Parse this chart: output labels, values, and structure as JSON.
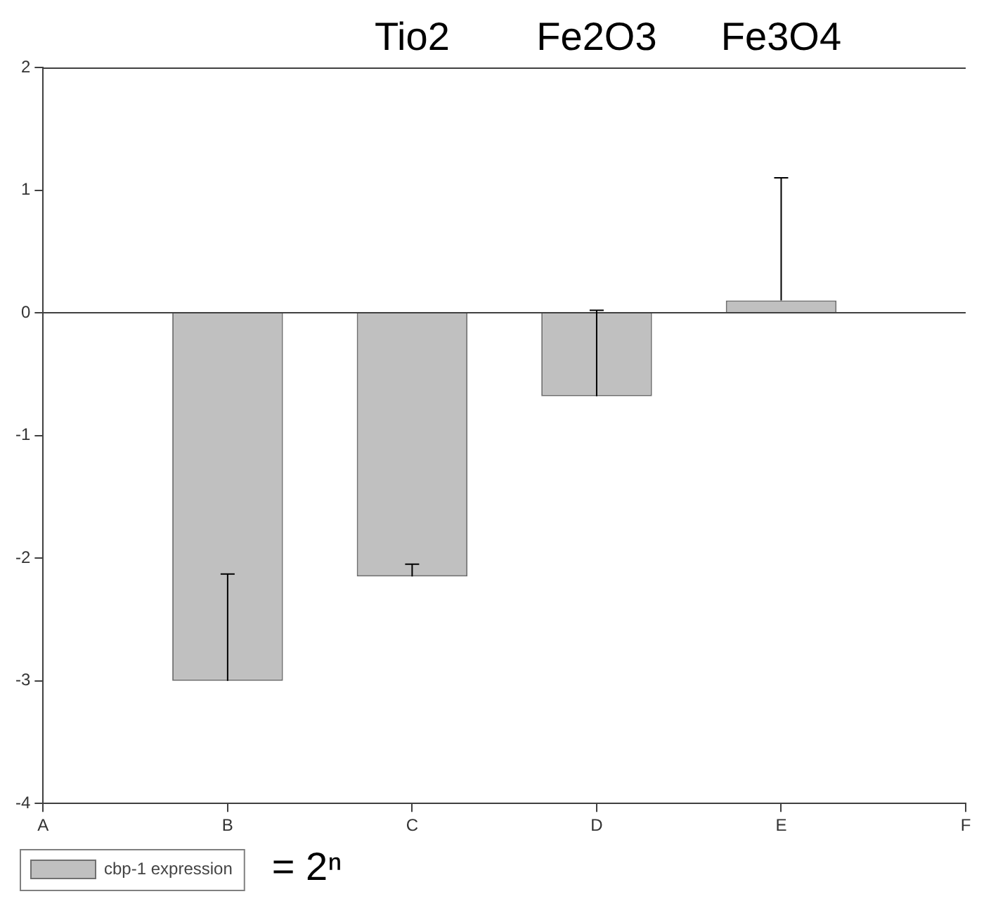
{
  "chart_data": {
    "type": "bar",
    "categories": [
      "A",
      "B",
      "C",
      "D",
      "E",
      "F"
    ],
    "series": [
      {
        "name": "cbp-1 expression",
        "color": "#c0c0c0",
        "values": [
          null,
          -3,
          -2.15,
          -0.68,
          0.1,
          null
        ],
        "errors": [
          null,
          [
            -3,
            -2.13
          ],
          [
            -2.15,
            -2.05
          ],
          [
            -0.68,
            0.02
          ],
          [
            0.1,
            1.1
          ],
          null
        ]
      }
    ],
    "ylim": [
      -4,
      2
    ],
    "yticks": [
      -4,
      -3,
      -2,
      -1,
      0,
      1,
      2
    ],
    "grid": false,
    "legend": "bottom left",
    "ref_lines": [
      {
        "axis": "y",
        "value": 0,
        "color": "#404040"
      }
    ],
    "annotations": [
      "Tio2",
      "Fe2O3",
      "Fe3O4",
      "= 2ⁿ"
    ]
  }
}
